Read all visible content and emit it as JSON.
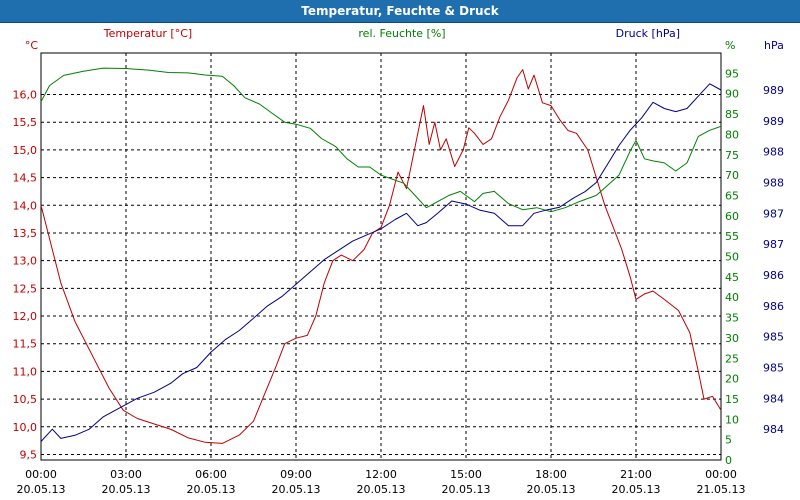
{
  "window": {
    "title": "Temperatur, Feuchte & Druck"
  },
  "chart_data": {
    "type": "line",
    "title": "Temperatur, Feuchte & Druck",
    "x_labels": [
      [
        "00:00",
        "20.05.13"
      ],
      [
        "03:00",
        "20.05.13"
      ],
      [
        "06:00",
        "20.05.13"
      ],
      [
        "09:00",
        "20.05.13"
      ],
      [
        "12:00",
        "20.05.13"
      ],
      [
        "15:00",
        "20.05.13"
      ],
      [
        "18:00",
        "20.05.13"
      ],
      [
        "21:00",
        "20.05.13"
      ],
      [
        "00:00",
        "21.05.13"
      ]
    ],
    "xlim": [
      0,
      24
    ],
    "axes": {
      "temperature": {
        "label": "Temperatur [°C]",
        "unit": "°C",
        "color": "#c00000",
        "ylim": [
          9.4,
          16.75
        ],
        "ticks": [
          "9,5",
          "10,0",
          "10,5",
          "11,0",
          "11,5",
          "12,0",
          "12,5",
          "13,0",
          "13,5",
          "14,0",
          "14,5",
          "15,0",
          "15,5",
          "16,0"
        ]
      },
      "humidity": {
        "label": "rel. Feuchte [%]",
        "unit": "%",
        "color": "#008000",
        "ylim": [
          0,
          100
        ],
        "ticks": [
          "0",
          "5",
          "10",
          "15",
          "20",
          "25",
          "30",
          "35",
          "40",
          "45",
          "50",
          "55",
          "60",
          "65",
          "70",
          "75",
          "80",
          "85",
          "90",
          "95"
        ]
      },
      "pressure": {
        "label": "Druck [hPa]",
        "unit": "hPa",
        "color": "#00008b",
        "ylim": [
          983.5,
          990.1
        ],
        "ticks": [
          "984",
          "984",
          "985",
          "985",
          "986",
          "986",
          "987",
          "987",
          "988",
          "988",
          "989",
          "989"
        ]
      }
    },
    "series": [
      {
        "name": "Temperatur",
        "axis": "temperature",
        "color": "#c00000",
        "points": [
          [
            0,
            14.0
          ],
          [
            0.3,
            13.4
          ],
          [
            0.7,
            12.6
          ],
          [
            1.2,
            11.9
          ],
          [
            1.8,
            11.3
          ],
          [
            2.4,
            10.7
          ],
          [
            2.9,
            10.3
          ],
          [
            3.4,
            10.15
          ],
          [
            4.0,
            10.05
          ],
          [
            4.6,
            9.95
          ],
          [
            5.2,
            9.8
          ],
          [
            5.8,
            9.72
          ],
          [
            6.4,
            9.7
          ],
          [
            7.0,
            9.85
          ],
          [
            7.5,
            10.1
          ],
          [
            7.9,
            10.6
          ],
          [
            8.3,
            11.1
          ],
          [
            8.6,
            11.5
          ],
          [
            9.0,
            11.6
          ],
          [
            9.4,
            11.65
          ],
          [
            9.7,
            12.0
          ],
          [
            10.0,
            12.6
          ],
          [
            10.3,
            13.0
          ],
          [
            10.6,
            13.1
          ],
          [
            11.0,
            13.0
          ],
          [
            11.4,
            13.2
          ],
          [
            11.7,
            13.5
          ],
          [
            12.0,
            13.6
          ],
          [
            12.3,
            14.0
          ],
          [
            12.6,
            14.6
          ],
          [
            12.9,
            14.3
          ],
          [
            13.3,
            15.3
          ],
          [
            13.5,
            15.8
          ],
          [
            13.7,
            15.1
          ],
          [
            13.9,
            15.5
          ],
          [
            14.1,
            15.0
          ],
          [
            14.3,
            15.2
          ],
          [
            14.6,
            14.7
          ],
          [
            14.9,
            15.0
          ],
          [
            15.1,
            15.4
          ],
          [
            15.3,
            15.3
          ],
          [
            15.6,
            15.1
          ],
          [
            15.9,
            15.2
          ],
          [
            16.2,
            15.6
          ],
          [
            16.5,
            15.9
          ],
          [
            16.8,
            16.3
          ],
          [
            17.0,
            16.45
          ],
          [
            17.2,
            16.1
          ],
          [
            17.4,
            16.35
          ],
          [
            17.7,
            15.85
          ],
          [
            18.0,
            15.8
          ],
          [
            18.3,
            15.55
          ],
          [
            18.6,
            15.35
          ],
          [
            18.9,
            15.3
          ],
          [
            19.3,
            15.0
          ],
          [
            19.6,
            14.5
          ],
          [
            19.9,
            14.0
          ],
          [
            20.2,
            13.6
          ],
          [
            20.5,
            13.2
          ],
          [
            20.8,
            12.7
          ],
          [
            21.0,
            12.3
          ],
          [
            21.3,
            12.4
          ],
          [
            21.6,
            12.45
          ],
          [
            22.0,
            12.3
          ],
          [
            22.5,
            12.1
          ],
          [
            22.9,
            11.7
          ],
          [
            23.2,
            11.0
          ],
          [
            23.4,
            10.5
          ],
          [
            23.7,
            10.55
          ],
          [
            24.0,
            10.3
          ]
        ]
      },
      {
        "name": "rel. Feuchte",
        "axis": "humidity",
        "color": "#008000",
        "points": [
          [
            0,
            88
          ],
          [
            0.3,
            92
          ],
          [
            0.8,
            94.5
          ],
          [
            1.5,
            95.5
          ],
          [
            2.2,
            96.3
          ],
          [
            3.0,
            96.2
          ],
          [
            3.8,
            95.8
          ],
          [
            4.5,
            95.2
          ],
          [
            5.2,
            95.1
          ],
          [
            5.8,
            94.6
          ],
          [
            6.4,
            94.3
          ],
          [
            6.8,
            92
          ],
          [
            7.2,
            89
          ],
          [
            7.7,
            87.5
          ],
          [
            8.2,
            85
          ],
          [
            8.6,
            83
          ],
          [
            9.0,
            82.5
          ],
          [
            9.5,
            81.5
          ],
          [
            9.9,
            79
          ],
          [
            10.4,
            77
          ],
          [
            10.8,
            74
          ],
          [
            11.2,
            72
          ],
          [
            11.6,
            72
          ],
          [
            12.0,
            70
          ],
          [
            12.4,
            69
          ],
          [
            12.8,
            68
          ],
          [
            13.2,
            65
          ],
          [
            13.6,
            62
          ],
          [
            14.0,
            63.5
          ],
          [
            14.4,
            65
          ],
          [
            14.8,
            66
          ],
          [
            15.3,
            63.5
          ],
          [
            15.6,
            65.5
          ],
          [
            16.0,
            66
          ],
          [
            16.5,
            63
          ],
          [
            17.0,
            61.5
          ],
          [
            17.5,
            62
          ],
          [
            18.0,
            61
          ],
          [
            18.5,
            62
          ],
          [
            19.0,
            63.5
          ],
          [
            19.6,
            65
          ],
          [
            20.0,
            67.5
          ],
          [
            20.4,
            70
          ],
          [
            20.8,
            76
          ],
          [
            21.0,
            78.5
          ],
          [
            21.3,
            74
          ],
          [
            21.6,
            73.5
          ],
          [
            22.0,
            73
          ],
          [
            22.4,
            71
          ],
          [
            22.8,
            73
          ],
          [
            23.2,
            79.5
          ],
          [
            23.6,
            81
          ],
          [
            24.0,
            82
          ]
        ]
      },
      {
        "name": "Druck",
        "axis": "pressure",
        "color": "#00008b",
        "points": [
          [
            0,
            983.8
          ],
          [
            0.4,
            984.0
          ],
          [
            0.7,
            983.85
          ],
          [
            1.2,
            983.9
          ],
          [
            1.7,
            984.0
          ],
          [
            2.2,
            984.2
          ],
          [
            2.8,
            984.35
          ],
          [
            3.4,
            984.5
          ],
          [
            4.0,
            984.6
          ],
          [
            4.6,
            984.75
          ],
          [
            5.0,
            984.9
          ],
          [
            5.5,
            985.0
          ],
          [
            6.0,
            985.25
          ],
          [
            6.5,
            985.45
          ],
          [
            7.0,
            985.6
          ],
          [
            7.5,
            985.8
          ],
          [
            8.0,
            986.0
          ],
          [
            8.5,
            986.15
          ],
          [
            9.0,
            986.35
          ],
          [
            9.5,
            986.55
          ],
          [
            10.0,
            986.75
          ],
          [
            10.5,
            986.9
          ],
          [
            11.0,
            987.05
          ],
          [
            11.5,
            987.15
          ],
          [
            12.0,
            987.25
          ],
          [
            12.5,
            987.4
          ],
          [
            12.9,
            987.5
          ],
          [
            13.3,
            987.3
          ],
          [
            13.6,
            987.35
          ],
          [
            14.0,
            987.5
          ],
          [
            14.5,
            987.7
          ],
          [
            15.0,
            987.65
          ],
          [
            15.5,
            987.55
          ],
          [
            16.0,
            987.5
          ],
          [
            16.5,
            987.3
          ],
          [
            17.0,
            987.3
          ],
          [
            17.4,
            987.5
          ],
          [
            17.8,
            987.55
          ],
          [
            18.3,
            987.6
          ],
          [
            18.8,
            987.75
          ],
          [
            19.2,
            987.85
          ],
          [
            19.6,
            988.0
          ],
          [
            20.0,
            988.3
          ],
          [
            20.4,
            988.6
          ],
          [
            20.8,
            988.85
          ],
          [
            21.2,
            989.05
          ],
          [
            21.6,
            989.3
          ],
          [
            22.0,
            989.2
          ],
          [
            22.4,
            989.15
          ],
          [
            22.8,
            989.2
          ],
          [
            23.2,
            989.4
          ],
          [
            23.6,
            989.6
          ],
          [
            24.0,
            989.5
          ]
        ]
      }
    ]
  }
}
